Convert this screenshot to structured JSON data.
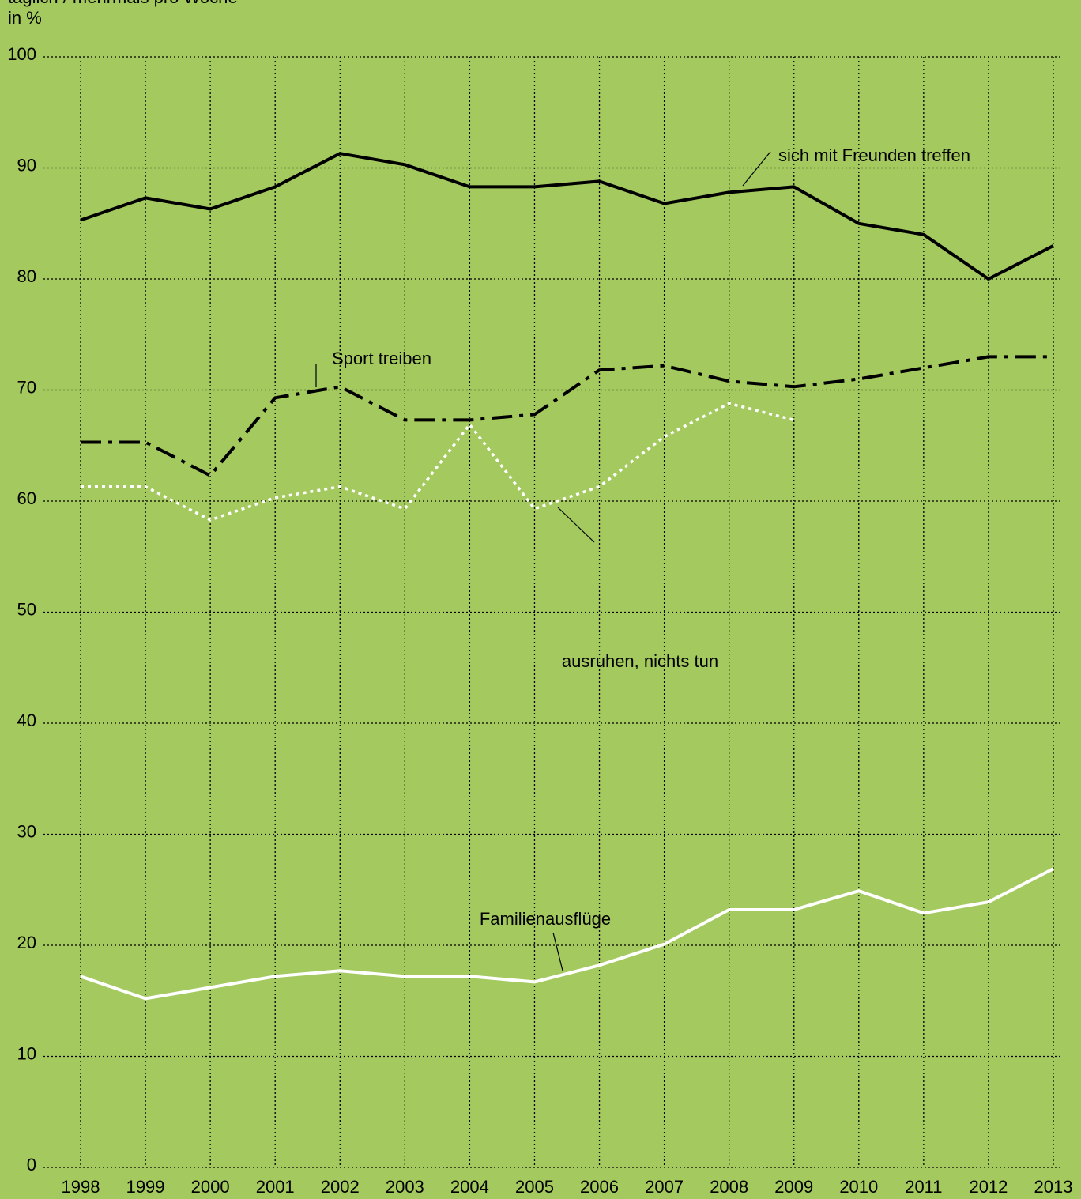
{
  "chart_data": {
    "type": "line",
    "subtitle": "täglich / mehrmals pro Woche",
    "y_label": "in %",
    "categories": [
      "1998",
      "1999",
      "2000",
      "2001",
      "2002",
      "2003",
      "2004",
      "2005",
      "2006",
      "2007",
      "2008",
      "2009",
      "2010",
      "2011",
      "2012",
      "2013"
    ],
    "series": [
      {
        "name": "sich mit Freunden treffen",
        "color": "#000000",
        "style": "solid",
        "values": [
          85.3,
          87.3,
          86.3,
          88.3,
          91.3,
          90.3,
          88.3,
          88.3,
          88.8,
          86.8,
          87.8,
          88.3,
          85,
          84,
          80,
          83
        ]
      },
      {
        "name": "Sport treiben",
        "color": "#000000",
        "style": "dashdot",
        "values": [
          65.3,
          65.3,
          62.3,
          69.3,
          70.3,
          67.3,
          67.3,
          67.8,
          71.8,
          72.2,
          70.8,
          70.3,
          71,
          72,
          73,
          73
        ]
      },
      {
        "name": "ausruhen, nichts tun",
        "color": "#ffffff",
        "style": "dotted",
        "values": [
          61.3,
          61.3,
          58.3,
          60.3,
          61.3,
          59.3,
          66.9,
          59.3,
          61.3,
          65.8,
          68.8,
          67.3,
          null,
          null,
          null,
          null
        ]
      },
      {
        "name": "Familienausflüge",
        "color": "#ffffff",
        "style": "solid",
        "values": [
          17.2,
          15.2,
          16.2,
          17.2,
          17.7,
          17.2,
          17.2,
          16.7,
          18.2,
          20.1,
          23.2,
          23.2,
          24.9,
          22.9,
          23.9,
          26.9
        ]
      }
    ],
    "ylim": [
      0,
      100
    ],
    "yticks": [
      0,
      10,
      20,
      30,
      40,
      50,
      60,
      70,
      80,
      90,
      100
    ],
    "grid": true
  }
}
